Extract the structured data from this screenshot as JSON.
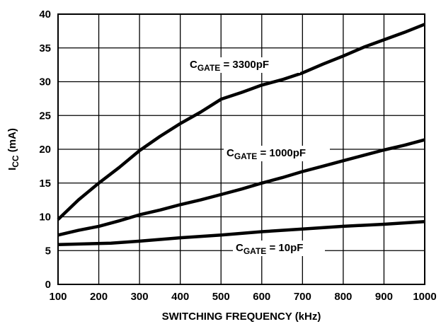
{
  "chart_data": {
    "type": "line",
    "xlabel": "SWITCHING FREQUENCY (kHz)",
    "ylabel": {
      "main": "I",
      "sub": "CC",
      "rest": " (mA)"
    },
    "xlim": [
      100,
      1000
    ],
    "ylim": [
      0,
      40
    ],
    "x_ticks": [
      100,
      200,
      300,
      400,
      500,
      600,
      700,
      800,
      900,
      1000
    ],
    "y_ticks": [
      0,
      5,
      10,
      15,
      20,
      25,
      30,
      35,
      40
    ],
    "grid": true,
    "series": [
      {
        "name": "CGATE = 3300pF",
        "label": {
          "main": "C",
          "sub": "GATE",
          "rest": " = 3300pF"
        },
        "x": [
          100,
          150,
          200,
          250,
          300,
          350,
          400,
          450,
          500,
          550,
          600,
          650,
          700,
          750,
          800,
          850,
          900,
          950,
          1000
        ],
        "y": [
          9.6,
          12.5,
          15.0,
          17.3,
          19.8,
          21.9,
          23.8,
          25.5,
          27.4,
          28.4,
          29.5,
          30.3,
          31.3,
          32.6,
          33.8,
          35.1,
          36.2,
          37.3,
          38.5
        ]
      },
      {
        "name": "CGATE = 1000pF",
        "label": {
          "main": "C",
          "sub": "GATE",
          "rest": " = 1000pF"
        },
        "x": [
          100,
          150,
          200,
          250,
          300,
          350,
          400,
          450,
          500,
          550,
          600,
          650,
          700,
          750,
          800,
          850,
          900,
          950,
          1000
        ],
        "y": [
          7.3,
          8.0,
          8.6,
          9.4,
          10.3,
          11.0,
          11.8,
          12.5,
          13.3,
          14.1,
          15.0,
          15.8,
          16.7,
          17.5,
          18.3,
          19.1,
          19.9,
          20.6,
          21.4
        ]
      },
      {
        "name": "CGATE = 10pF",
        "label": {
          "main": "C",
          "sub": "GATE",
          "rest": " = 10pF"
        },
        "x": [
          100,
          230,
          300,
          400,
          500,
          600,
          700,
          800,
          900,
          1000
        ],
        "y": [
          5.9,
          6.1,
          6.4,
          6.9,
          7.3,
          7.8,
          8.2,
          8.6,
          8.9,
          9.3
        ]
      }
    ]
  }
}
